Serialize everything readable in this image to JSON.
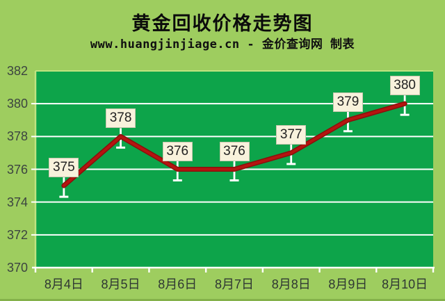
{
  "header": {
    "title": "黄金回收价格走势图",
    "subtitle": "www.huangjinjiage.cn - 金价查询网 制表"
  },
  "chart_data": {
    "type": "line",
    "title": "黄金回收价格走势图",
    "caption": "www.huangjinjiage.cn - 金价查询网 制表",
    "categories": [
      "8月4日",
      "8月5日",
      "8月6日",
      "8月7日",
      "8月8日",
      "8月9日",
      "8月10日"
    ],
    "series": [
      {
        "name": "黄金回收价格",
        "values": [
          375,
          378,
          376,
          376,
          377,
          379,
          380
        ]
      }
    ],
    "data_labels": [
      "375",
      "378",
      "376",
      "376",
      "377",
      "379",
      "380"
    ],
    "xlabel": "",
    "ylabel": "",
    "ylim": [
      370,
      382
    ],
    "yticks": [
      382,
      380,
      378,
      376,
      374,
      372,
      370
    ],
    "grid": true,
    "legend_position": "none"
  },
  "colors": {
    "page_bg": "#9ECD5F",
    "plot_bg": "#0DA44A",
    "plot_edge": "#BFE380",
    "grid_line": "#FFFFFF",
    "axis_line": "#FFFFFF",
    "price_line_core": "#B51410",
    "price_line_edge": "#8A0F0C",
    "whisker": "#FFFFFF",
    "label_box_bg": "#F8F2DC",
    "label_box_border": "#C9C5AE",
    "title_text": "#0B0B0B",
    "axis_text": "#3C4440",
    "bottom_strip": "#84B14A"
  }
}
